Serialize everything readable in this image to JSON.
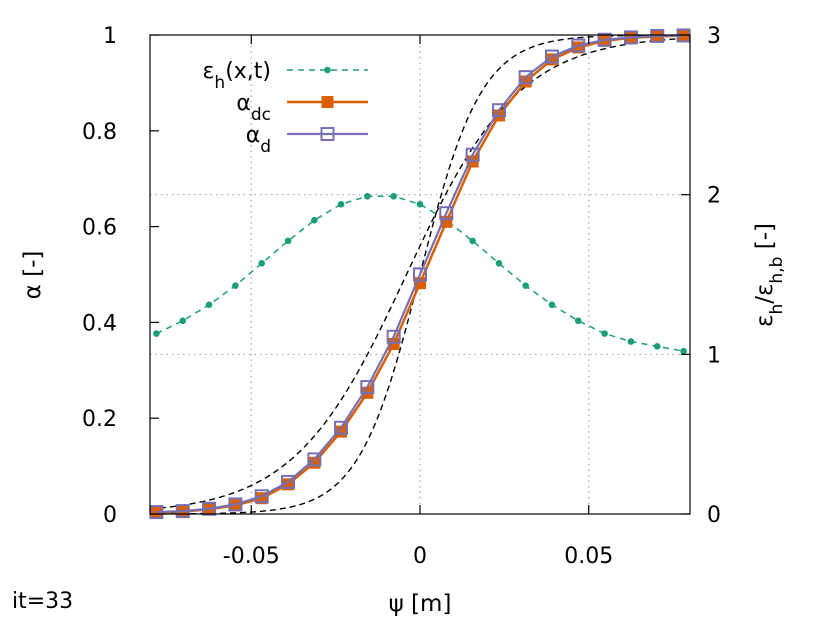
{
  "chart_data": {
    "type": "line",
    "xlabel": "ψ [m]",
    "ylabel": "α [-]",
    "y2label": "εh/εh,b [-]",
    "xlim": [
      -0.08,
      0.08
    ],
    "ylim": [
      0,
      1
    ],
    "y2lim": [
      0,
      3
    ],
    "xticks": [
      -0.05,
      0,
      0.05
    ],
    "xtick_labels": [
      "-0.05",
      "0",
      "0.05"
    ],
    "yticks": [
      0,
      0.2,
      0.4,
      0.6,
      0.8,
      1
    ],
    "ytick_labels": [
      "0",
      "0.2",
      "0.4",
      "0.6",
      "0.8",
      "1"
    ],
    "y2ticks": [
      0,
      1,
      2,
      3
    ],
    "y2tick_labels": [
      "0",
      "1",
      "2",
      "3"
    ],
    "grid": "dotted at x ticks and right-axis ticks",
    "legend_position": "top-left",
    "x": [
      -0.0781,
      -0.0703,
      -0.0625,
      -0.0547,
      -0.0469,
      -0.0391,
      -0.0313,
      -0.0234,
      -0.0156,
      -0.0078,
      0.0,
      0.0078,
      0.0156,
      0.0234,
      0.0313,
      0.0391,
      0.0469,
      0.0547,
      0.0625,
      0.0703,
      0.0781
    ],
    "series": [
      {
        "name": "εh(x,t)",
        "axis": "right",
        "style": "dashed-dots",
        "color": "#1a9e77",
        "values": [
          1.13,
          1.21,
          1.31,
          1.43,
          1.57,
          1.71,
          1.84,
          1.94,
          1.99,
          1.99,
          1.94,
          1.84,
          1.71,
          1.57,
          1.43,
          1.31,
          1.21,
          1.13,
          1.08,
          1.05,
          1.02
        ]
      },
      {
        "name": "αdc",
        "axis": "left",
        "style": "line-filled-square",
        "color": "#d95f02",
        "values": [
          0.003,
          0.005,
          0.01,
          0.018,
          0.033,
          0.062,
          0.107,
          0.172,
          0.253,
          0.355,
          0.482,
          0.61,
          0.736,
          0.832,
          0.903,
          0.949,
          0.974,
          0.988,
          0.994,
          0.997,
          0.999
        ]
      },
      {
        "name": "αd",
        "axis": "left",
        "style": "line-open-square",
        "color": "#7570b3",
        "values": [
          0.004,
          0.006,
          0.011,
          0.02,
          0.037,
          0.067,
          0.114,
          0.18,
          0.265,
          0.37,
          0.5,
          0.628,
          0.75,
          0.843,
          0.912,
          0.955,
          0.978,
          0.99,
          0.995,
          0.998,
          0.999
        ]
      },
      {
        "name": "",
        "axis": "left",
        "style": "black-dashed",
        "color": "#000000",
        "fn": "sigmoid",
        "params": {
          "x0": -0.004,
          "k": 60
        }
      },
      {
        "name": "",
        "axis": "left",
        "style": "black-dashed",
        "color": "#000000",
        "fn": "sigmoid",
        "params": {
          "x0": 0.0,
          "k": 110
        }
      }
    ]
  },
  "footer": {
    "iteration": "it=33"
  }
}
